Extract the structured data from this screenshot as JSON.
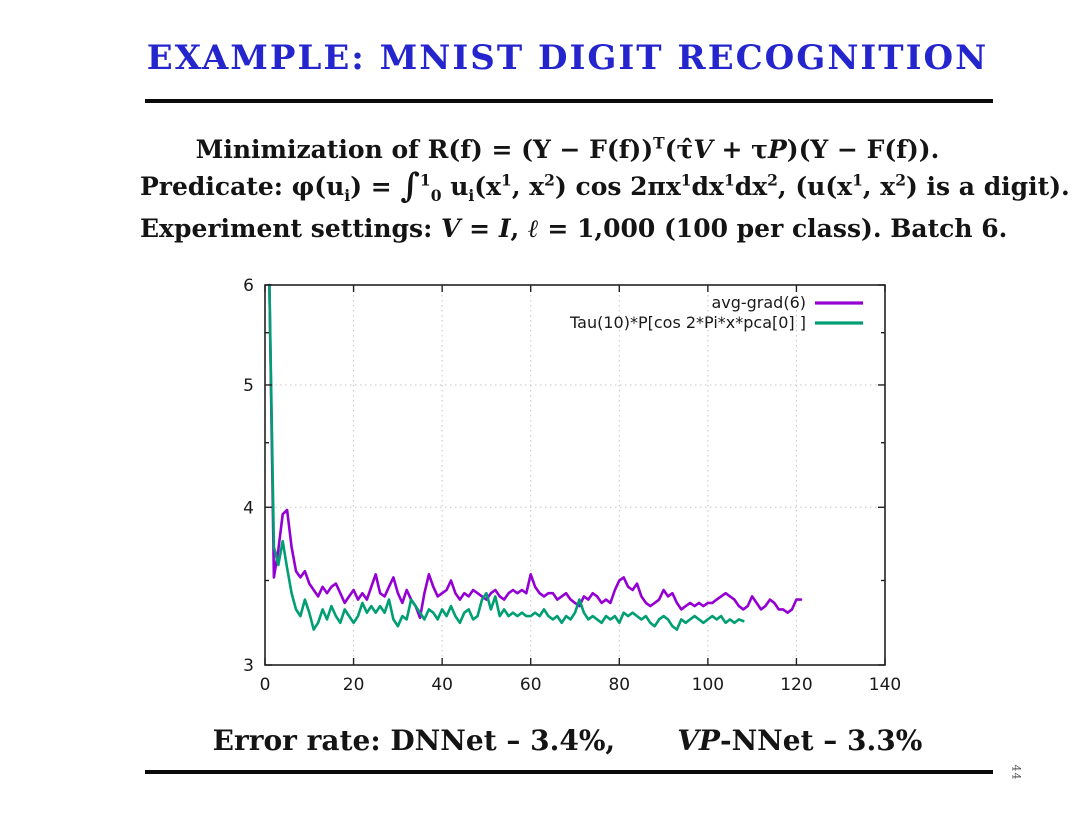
{
  "slide": {
    "title": "EXAMPLE: MNIST DIGIT RECOGNITION",
    "page_number": "44",
    "colors": {
      "title_blue": "#2525cd",
      "text": "#141414",
      "series_purple": "#9400d3",
      "series_teal": "#009e73"
    },
    "formula_minimization": [
      {
        "t": "n",
        "v": "Minimization of R(f) = (Y − F(f))"
      },
      {
        "t": "sup",
        "v": "T"
      },
      {
        "t": "n",
        "v": "(τ̂"
      },
      {
        "t": "scr",
        "v": "V"
      },
      {
        "t": "n",
        "v": " + τ"
      },
      {
        "t": "scr",
        "v": "P"
      },
      {
        "t": "n",
        "v": ")(Y − F(f))."
      }
    ],
    "formula_predicate": [
      {
        "t": "n",
        "v": "Predicate: φ(u"
      },
      {
        "t": "sub",
        "v": "i"
      },
      {
        "t": "n",
        "v": ") = "
      },
      {
        "t": "int",
        "v": "∫"
      },
      {
        "t": "sup",
        "v": "1"
      },
      {
        "t": "sub",
        "v": "0"
      },
      {
        "t": "n",
        "v": " u"
      },
      {
        "t": "sub",
        "v": "i"
      },
      {
        "t": "n",
        "v": "(x"
      },
      {
        "t": "sup",
        "v": "1"
      },
      {
        "t": "n",
        "v": ", x"
      },
      {
        "t": "sup",
        "v": "2"
      },
      {
        "t": "n",
        "v": ") cos 2πx"
      },
      {
        "t": "sup",
        "v": "1"
      },
      {
        "t": "n",
        "v": "dx"
      },
      {
        "t": "sup",
        "v": "1"
      },
      {
        "t": "n",
        "v": "dx"
      },
      {
        "t": "sup",
        "v": "2"
      },
      {
        "t": "n",
        "v": ",  (u(x"
      },
      {
        "t": "sup",
        "v": "1"
      },
      {
        "t": "n",
        "v": ", x"
      },
      {
        "t": "sup",
        "v": "2"
      },
      {
        "t": "n",
        "v": ") is a digit)."
      }
    ],
    "experiment_settings": [
      {
        "t": "n",
        "v": "Experiment settings: "
      },
      {
        "t": "scr",
        "v": "V"
      },
      {
        "t": "n",
        "v": " = "
      },
      {
        "t": "i",
        "v": "I"
      },
      {
        "t": "n",
        "v": ", "
      },
      {
        "t": "i",
        "v": "ℓ"
      },
      {
        "t": "n",
        "v": " = 1,000 (100 per class). Batch 6."
      }
    ],
    "error_rate_left": [
      {
        "t": "n",
        "v": "Error rate: DNNet – 3.4%,"
      }
    ],
    "error_rate_right": [
      {
        "t": "scr",
        "v": "VP"
      },
      {
        "t": "n",
        "v": "-NNet – 3.3%"
      }
    ]
  },
  "chart_data": {
    "type": "line",
    "title": "",
    "xlabel": "",
    "ylabel": "",
    "x_axis": {
      "lim": [
        0,
        140
      ],
      "ticks": [
        0,
        20,
        40,
        60,
        80,
        100,
        120,
        140
      ]
    },
    "y_axis": {
      "lim": [
        3,
        6
      ],
      "scale": "log",
      "ticks": [
        3,
        4,
        5,
        6
      ],
      "minor_ticks": [
        3.5,
        4.5,
        5.5
      ]
    },
    "grid": {
      "x": [
        20,
        40,
        60,
        80,
        100,
        120
      ],
      "y": [
        4,
        5
      ]
    },
    "legend": {
      "position": "top-right",
      "entries": [
        {
          "label": "avg-grad(6)",
          "color": "#9400d3"
        },
        {
          "label": "Tau(10)*P[cos 2*Pi*x*pca[0] ]",
          "color": "#009e73"
        }
      ]
    },
    "series": [
      {
        "name": "avg-grad(6)",
        "color": "#9400d3",
        "x_start": 1,
        "x_step": 1,
        "values": [
          6.0,
          3.52,
          3.7,
          3.95,
          3.98,
          3.72,
          3.56,
          3.52,
          3.56,
          3.48,
          3.44,
          3.4,
          3.46,
          3.42,
          3.46,
          3.48,
          3.42,
          3.36,
          3.4,
          3.44,
          3.38,
          3.42,
          3.38,
          3.46,
          3.54,
          3.42,
          3.4,
          3.46,
          3.52,
          3.42,
          3.36,
          3.44,
          3.38,
          3.34,
          3.27,
          3.42,
          3.54,
          3.46,
          3.4,
          3.42,
          3.44,
          3.5,
          3.42,
          3.38,
          3.42,
          3.4,
          3.44,
          3.42,
          3.4,
          3.38,
          3.42,
          3.44,
          3.4,
          3.38,
          3.42,
          3.44,
          3.42,
          3.44,
          3.42,
          3.54,
          3.46,
          3.42,
          3.4,
          3.42,
          3.42,
          3.38,
          3.4,
          3.42,
          3.38,
          3.36,
          3.34,
          3.4,
          3.38,
          3.42,
          3.4,
          3.36,
          3.38,
          3.36,
          3.44,
          3.5,
          3.52,
          3.46,
          3.44,
          3.48,
          3.4,
          3.36,
          3.34,
          3.36,
          3.38,
          3.44,
          3.4,
          3.42,
          3.36,
          3.32,
          3.34,
          3.36,
          3.34,
          3.36,
          3.34,
          3.36,
          3.36,
          3.38,
          3.4,
          3.42,
          3.4,
          3.38,
          3.34,
          3.32,
          3.34,
          3.4,
          3.36,
          3.32,
          3.34,
          3.38,
          3.36,
          3.32,
          3.32,
          3.3,
          3.32,
          3.38,
          3.38
        ]
      },
      {
        "name": "Tau(10)*P[cos 2*Pi*x*pca[0] ]",
        "color": "#009e73",
        "x_start": 1,
        "x_step": 1,
        "values": [
          6.0,
          3.72,
          3.6,
          3.76,
          3.58,
          3.42,
          3.32,
          3.28,
          3.38,
          3.3,
          3.2,
          3.24,
          3.32,
          3.26,
          3.34,
          3.28,
          3.24,
          3.32,
          3.28,
          3.24,
          3.28,
          3.36,
          3.3,
          3.34,
          3.3,
          3.34,
          3.3,
          3.38,
          3.26,
          3.22,
          3.28,
          3.26,
          3.38,
          3.34,
          3.3,
          3.26,
          3.32,
          3.3,
          3.26,
          3.32,
          3.28,
          3.34,
          3.28,
          3.24,
          3.3,
          3.32,
          3.26,
          3.28,
          3.38,
          3.42,
          3.32,
          3.4,
          3.28,
          3.32,
          3.28,
          3.3,
          3.28,
          3.3,
          3.28,
          3.28,
          3.3,
          3.28,
          3.32,
          3.28,
          3.26,
          3.28,
          3.24,
          3.28,
          3.26,
          3.3,
          3.38,
          3.3,
          3.26,
          3.28,
          3.26,
          3.24,
          3.28,
          3.26,
          3.28,
          3.24,
          3.3,
          3.28,
          3.3,
          3.28,
          3.26,
          3.28,
          3.24,
          3.22,
          3.26,
          3.28,
          3.26,
          3.22,
          3.2,
          3.26,
          3.24,
          3.26,
          3.28,
          3.26,
          3.24,
          3.26,
          3.28,
          3.26,
          3.28,
          3.24,
          3.26,
          3.24,
          3.26,
          3.25
        ]
      }
    ]
  }
}
